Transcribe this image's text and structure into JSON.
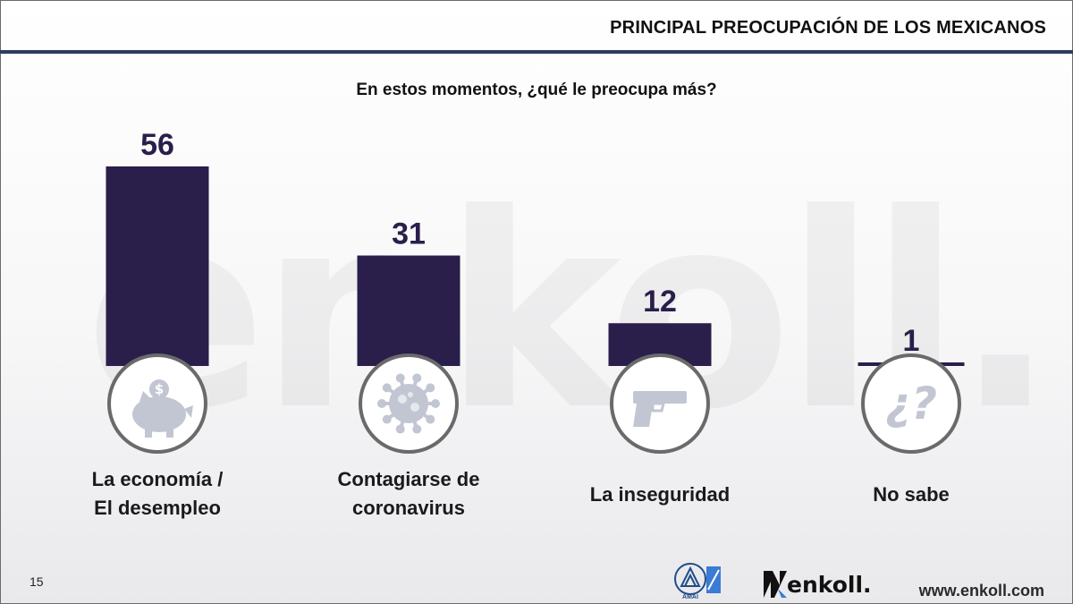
{
  "header": {
    "title": "PRINCIPAL PREOCUPACIÓN DE LOS MEXICANOS"
  },
  "watermark": "enkoll.",
  "chart_data": {
    "type": "bar",
    "title": "En estos momentos, ¿qué le preocupa más?",
    "categories": [
      [
        "La economía /",
        "El desempleo"
      ],
      [
        "Contagiarse de",
        "coronavirus"
      ],
      [
        "La inseguridad"
      ],
      [
        "No sabe"
      ]
    ],
    "values": [
      56,
      31,
      12,
      1
    ],
    "icons": [
      "piggy-bank-icon",
      "virus-icon",
      "gun-icon",
      "question-icon"
    ],
    "bar_color": "#2a1e4b",
    "ylim": [
      0,
      56
    ],
    "grid": false
  },
  "footer": {
    "page_number": "15",
    "logo_text": "enkoll.",
    "logo_small_text": "AMAI",
    "url": "www.enkoll.com"
  },
  "colors": {
    "bar": "#2a1e4b",
    "header_rule": "#2c3e5c",
    "icon_circle": "#6a6a6a",
    "icon": "#c2c6d3"
  }
}
